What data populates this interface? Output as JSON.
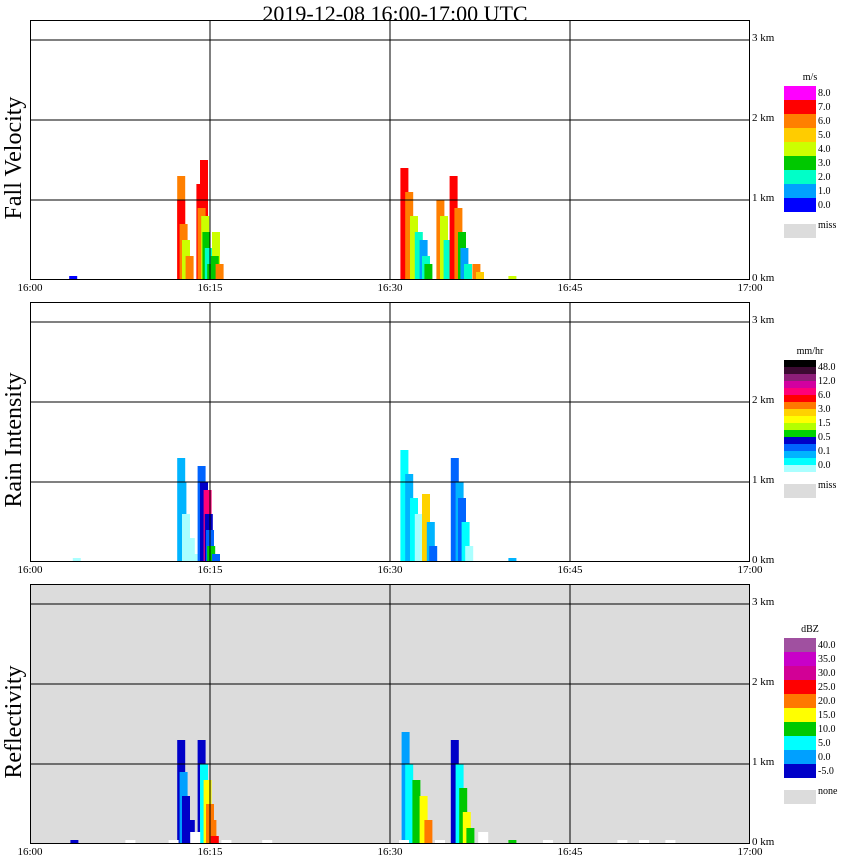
{
  "title": "2019-12-08   16:00-17:00 UTC",
  "colors": {
    "miss": "#dcdcdc",
    "grid": "#000000"
  },
  "chart_data": [
    {
      "type": "heatmap",
      "title": "Fall Velocity",
      "x_tick_labels": [
        "16:00",
        "16:15",
        "16:30",
        "16:45",
        "17:00"
      ],
      "y_tick_labels": [
        "0 km",
        "1 km",
        "2 km",
        "3 km"
      ],
      "xlim": [
        "16:00",
        "17:00"
      ],
      "ylim_km": [
        0,
        3
      ],
      "legend": {
        "unit": "m/s",
        "labels": [
          "8.0",
          "7.0",
          "6.0",
          "5.0",
          "4.0",
          "3.0",
          "2.0",
          "1.0",
          "0.0"
        ],
        "colors": [
          "#ff00ff",
          "#ff0000",
          "#ff7f00",
          "#ffcc00",
          "#ccff00",
          "#00c800",
          "#00ffc8",
          "#00a0ff",
          "#0000ff"
        ],
        "miss_label": "miss"
      },
      "background": "white",
      "cells": [
        {
          "t": 12.6,
          "h": 1.3,
          "v": 2
        },
        {
          "t": 12.6,
          "h": 1.0,
          "v": 1
        },
        {
          "t": 12.8,
          "h": 0.7,
          "v": 2
        },
        {
          "t": 13.0,
          "h": 0.5,
          "v": 4
        },
        {
          "t": 13.3,
          "h": 0.3,
          "v": 2
        },
        {
          "t": 14.2,
          "h": 1.2,
          "v": 1
        },
        {
          "t": 14.5,
          "h": 1.5,
          "v": 1
        },
        {
          "t": 14.3,
          "h": 0.9,
          "v": 2
        },
        {
          "t": 14.6,
          "h": 0.8,
          "v": 4
        },
        {
          "t": 14.7,
          "h": 0.6,
          "v": 5
        },
        {
          "t": 14.9,
          "h": 0.4,
          "v": 6
        },
        {
          "t": 15.1,
          "h": 0.2,
          "v": 5
        },
        {
          "t": 15.5,
          "h": 0.6,
          "v": 4
        },
        {
          "t": 15.4,
          "h": 0.3,
          "v": 5
        },
        {
          "t": 15.8,
          "h": 0.2,
          "v": 2
        },
        {
          "t": 31.2,
          "h": 1.4,
          "v": 1
        },
        {
          "t": 31.6,
          "h": 1.1,
          "v": 2
        },
        {
          "t": 32.0,
          "h": 0.8,
          "v": 4
        },
        {
          "t": 32.4,
          "h": 0.6,
          "v": 6
        },
        {
          "t": 32.8,
          "h": 0.5,
          "v": 7
        },
        {
          "t": 33.0,
          "h": 0.3,
          "v": 6
        },
        {
          "t": 33.2,
          "h": 0.2,
          "v": 5
        },
        {
          "t": 34.2,
          "h": 1.0,
          "v": 2
        },
        {
          "t": 34.5,
          "h": 0.8,
          "v": 4
        },
        {
          "t": 34.8,
          "h": 0.5,
          "v": 6
        },
        {
          "t": 35.3,
          "h": 1.3,
          "v": 1
        },
        {
          "t": 35.7,
          "h": 0.9,
          "v": 2
        },
        {
          "t": 36.0,
          "h": 0.6,
          "v": 5
        },
        {
          "t": 36.2,
          "h": 0.4,
          "v": 7
        },
        {
          "t": 36.5,
          "h": 0.2,
          "v": 6
        },
        {
          "t": 37.2,
          "h": 0.2,
          "v": 2
        },
        {
          "t": 37.5,
          "h": 0.1,
          "v": 3
        },
        {
          "t": 40.2,
          "h": 0.05,
          "v": 4
        },
        {
          "t": 3.6,
          "h": 0.05,
          "v": 8
        }
      ]
    },
    {
      "type": "heatmap",
      "title": "Rain Intensity",
      "x_tick_labels": [
        "16:00",
        "16:15",
        "16:30",
        "16:45",
        "17:00"
      ],
      "y_tick_labels": [
        "0 km",
        "1 km",
        "2 km",
        "3 km"
      ],
      "xlim": [
        "16:00",
        "17:00"
      ],
      "ylim_km": [
        0,
        3
      ],
      "legend": {
        "unit": "mm/hr",
        "labels": [
          "48.0",
          "12.0",
          "6.0",
          "3.0",
          "1.5",
          "0.5",
          "0.1",
          "0.0"
        ],
        "colors": [
          "#000000",
          "#3c0a32",
          "#8c1e78",
          "#d200a0",
          "#ff0078",
          "#ff0000",
          "#ff7800",
          "#ffd200",
          "#ffff00",
          "#b4ff00",
          "#00d200",
          "#0000c8",
          "#0064ff",
          "#00b4ff",
          "#00ffff",
          "#aaffff"
        ],
        "miss_label": "miss"
      },
      "background": "white",
      "cells": [
        {
          "t": 12.6,
          "h": 1.3,
          "v": 13
        },
        {
          "t": 12.7,
          "h": 1.0,
          "v": 13
        },
        {
          "t": 13.0,
          "h": 0.6,
          "v": 15
        },
        {
          "t": 13.4,
          "h": 0.3,
          "v": 15
        },
        {
          "t": 13.8,
          "h": 0.1,
          "v": 15
        },
        {
          "t": 14.3,
          "h": 1.2,
          "v": 12
        },
        {
          "t": 14.5,
          "h": 1.0,
          "v": 11
        },
        {
          "t": 14.8,
          "h": 0.9,
          "v": 4
        },
        {
          "t": 14.9,
          "h": 0.6,
          "v": 11
        },
        {
          "t": 15.0,
          "h": 0.4,
          "v": 12
        },
        {
          "t": 15.1,
          "h": 0.2,
          "v": 10
        },
        {
          "t": 15.5,
          "h": 0.1,
          "v": 12
        },
        {
          "t": 31.2,
          "h": 1.4,
          "v": 14
        },
        {
          "t": 31.6,
          "h": 1.1,
          "v": 13
        },
        {
          "t": 32.0,
          "h": 0.8,
          "v": 14
        },
        {
          "t": 32.4,
          "h": 0.6,
          "v": 15
        },
        {
          "t": 33.0,
          "h": 0.85,
          "v": 7
        },
        {
          "t": 33.4,
          "h": 0.5,
          "v": 13
        },
        {
          "t": 33.6,
          "h": 0.2,
          "v": 12
        },
        {
          "t": 35.4,
          "h": 1.3,
          "v": 12
        },
        {
          "t": 35.8,
          "h": 1.0,
          "v": 13
        },
        {
          "t": 36.0,
          "h": 0.8,
          "v": 12
        },
        {
          "t": 36.3,
          "h": 0.5,
          "v": 14
        },
        {
          "t": 36.6,
          "h": 0.2,
          "v": 15
        },
        {
          "t": 40.2,
          "h": 0.05,
          "v": 13
        },
        {
          "t": 3.9,
          "h": 0.05,
          "v": 15
        }
      ]
    },
    {
      "type": "heatmap",
      "title": "Reflectivity",
      "x_tick_labels": [
        "16:00",
        "16:15",
        "16:30",
        "16:45",
        "17:00"
      ],
      "y_tick_labels": [
        "0 km",
        "1 km",
        "2 km",
        "3 km"
      ],
      "xlim": [
        "16:00",
        "17:00"
      ],
      "ylim_km": [
        0,
        3
      ],
      "legend": {
        "unit": "dBZ",
        "labels": [
          "40.0",
          "35.0",
          "30.0",
          "25.0",
          "20.0",
          "15.0",
          "10.0",
          "5.0",
          "0.0",
          "-5.0"
        ],
        "colors": [
          "#a050a0",
          "#c800c8",
          "#d20096",
          "#ff0000",
          "#ff7800",
          "#ffff00",
          "#00c800",
          "#00ffff",
          "#00a0ff",
          "#0000c8"
        ],
        "miss_label": "none"
      },
      "background": "miss",
      "cells": [
        {
          "t": 12.6,
          "h": 1.3,
          "v": 9
        },
        {
          "t": 12.8,
          "h": 0.9,
          "v": 8
        },
        {
          "t": 13.0,
          "h": 0.6,
          "v": 9
        },
        {
          "t": 13.4,
          "h": 0.3,
          "v": 9
        },
        {
          "t": 14.3,
          "h": 1.3,
          "v": 9
        },
        {
          "t": 14.5,
          "h": 1.0,
          "v": 7
        },
        {
          "t": 14.8,
          "h": 0.8,
          "v": 5
        },
        {
          "t": 15.0,
          "h": 0.5,
          "v": 4
        },
        {
          "t": 15.2,
          "h": 0.3,
          "v": 4
        },
        {
          "t": 15.4,
          "h": 0.1,
          "v": 3
        },
        {
          "t": 31.3,
          "h": 1.4,
          "v": 8
        },
        {
          "t": 31.6,
          "h": 1.0,
          "v": 7
        },
        {
          "t": 32.2,
          "h": 0.8,
          "v": 6
        },
        {
          "t": 32.8,
          "h": 0.6,
          "v": 5
        },
        {
          "t": 33.2,
          "h": 0.3,
          "v": 4
        },
        {
          "t": 35.4,
          "h": 1.3,
          "v": 9
        },
        {
          "t": 35.8,
          "h": 1.0,
          "v": 7
        },
        {
          "t": 36.1,
          "h": 0.7,
          "v": 6
        },
        {
          "t": 36.4,
          "h": 0.4,
          "v": 5
        },
        {
          "t": 36.7,
          "h": 0.2,
          "v": 6
        },
        {
          "t": 40.2,
          "h": 0.05,
          "v": 6
        },
        {
          "t": 3.7,
          "h": 0.05,
          "v": 9
        }
      ],
      "none_cells": [
        {
          "t": 8.2,
          "h": 0.05
        },
        {
          "t": 11.8,
          "h": 0.05
        },
        {
          "t": 13.6,
          "h": 0.15
        },
        {
          "t": 16.2,
          "h": 0.05
        },
        {
          "t": 19.6,
          "h": 0.05
        },
        {
          "t": 31.0,
          "h": 0.05
        },
        {
          "t": 34.0,
          "h": 0.05
        },
        {
          "t": 37.6,
          "h": 0.15
        },
        {
          "t": 43.0,
          "h": 0.05
        },
        {
          "t": 49.2,
          "h": 0.05
        },
        {
          "t": 51.0,
          "h": 0.05
        },
        {
          "t": 53.2,
          "h": 0.05
        }
      ]
    }
  ]
}
